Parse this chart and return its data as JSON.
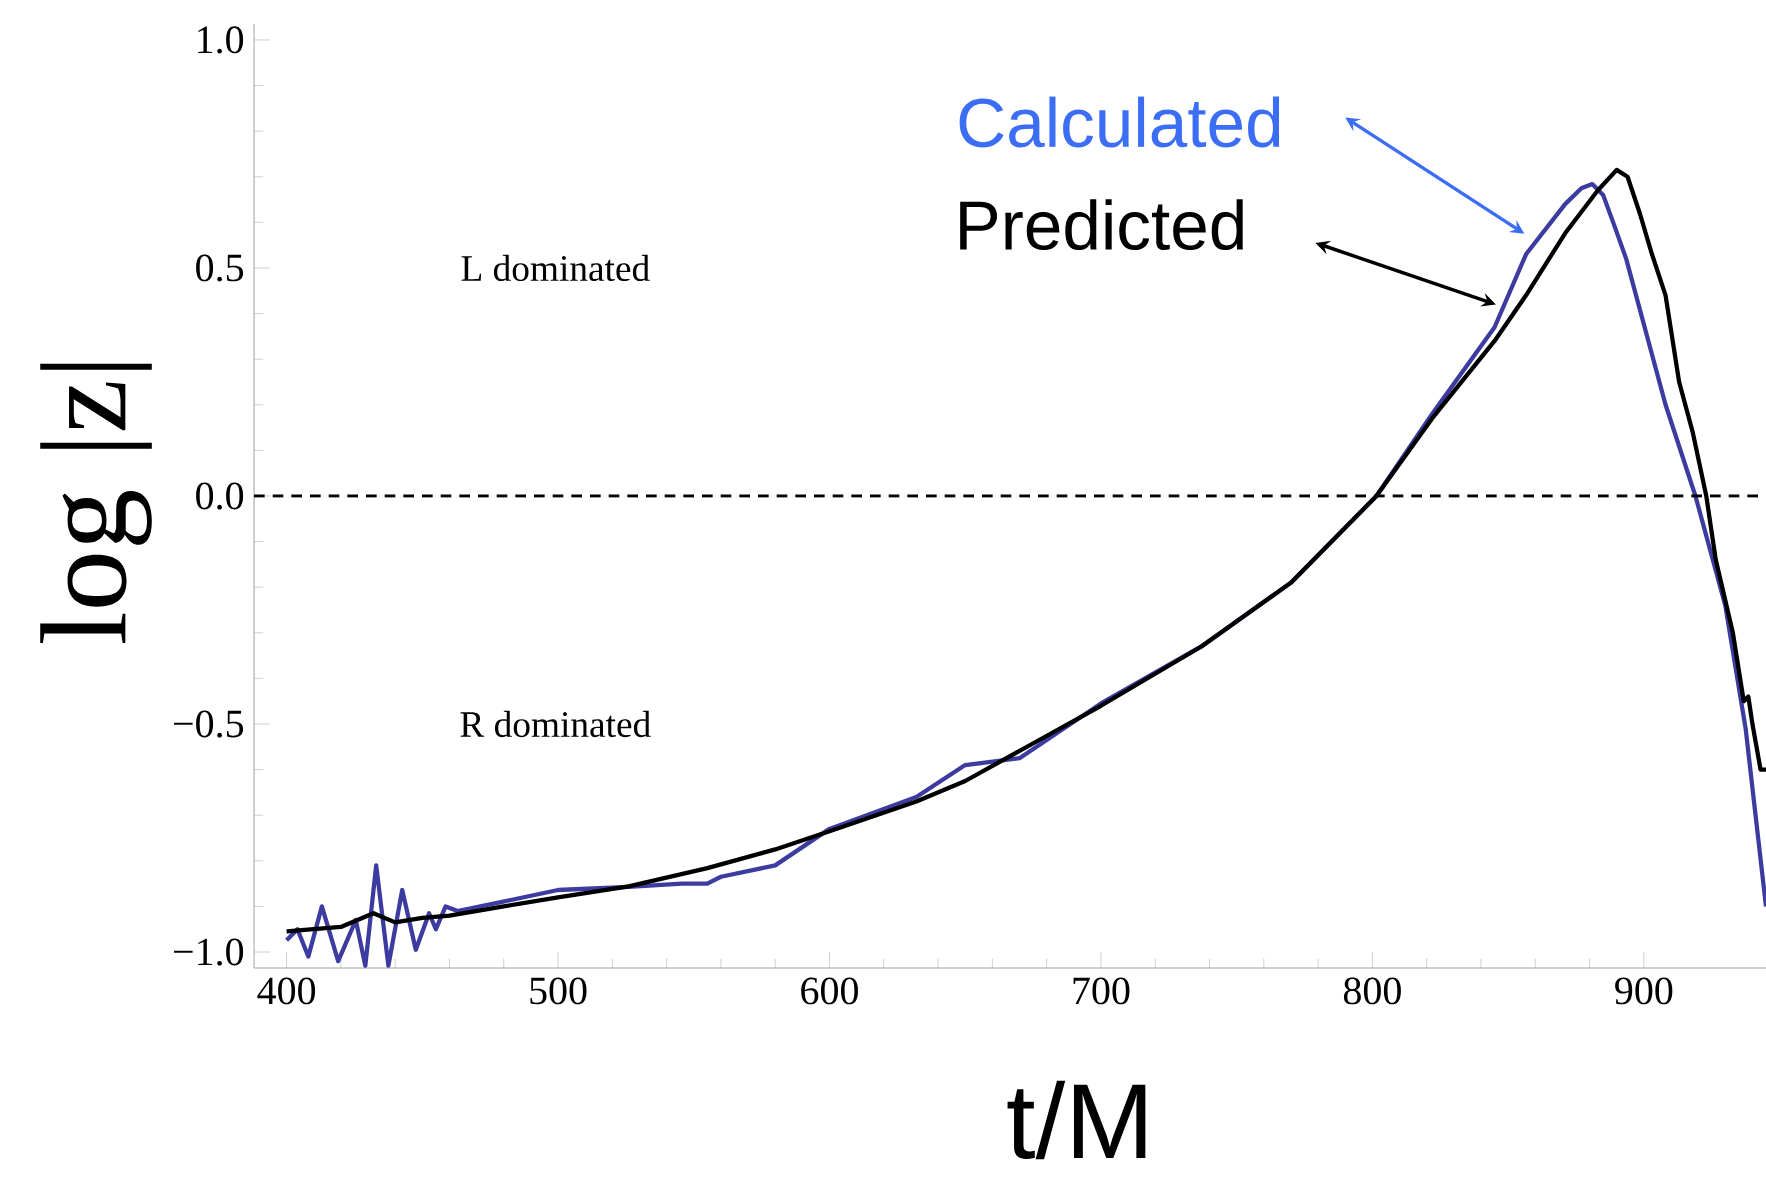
{
  "chart_data": {
    "type": "line",
    "xlabel": "t/M",
    "ylabel": "log |z|",
    "xlim": [
      388,
      945
    ],
    "ylim": [
      -1.035,
      1.035
    ],
    "xticks": [
      400,
      500,
      600,
      700,
      800,
      900
    ],
    "yticks": [
      {
        "value": -1,
        "label": "−1.0"
      },
      {
        "value": -0.5,
        "label": "−0.5"
      },
      {
        "value": 0,
        "label": "0.0"
      },
      {
        "value": 0.5,
        "label": "0.5"
      },
      {
        "value": 1,
        "label": "1.0"
      }
    ],
    "marker": "none",
    "line_style": "solid",
    "series": [
      {
        "name": "Calculated",
        "color": "#3c3ca0",
        "x": [
          400,
          404,
          408,
          413,
          419,
          425.5,
          429,
          433,
          437.5,
          442.6,
          447.6,
          452.5,
          455,
          458.6,
          463,
          479.4,
          500,
          526,
          545.6,
          555,
          560,
          580,
          600,
          632,
          650,
          670,
          700,
          737,
          770,
          801.5,
          822,
          845,
          856.6,
          871,
          877,
          881,
          885,
          888.7,
          893.5,
          908,
          919,
          930,
          937.5,
          945
        ],
        "values": [
          -0.974,
          -0.95,
          -1.01,
          -0.9,
          -1.02,
          -0.93,
          -1.03,
          -0.81,
          -1.03,
          -0.864,
          -0.995,
          -0.915,
          -0.95,
          -0.9,
          -0.91,
          -0.89,
          -0.864,
          -0.857,
          -0.85,
          -0.85,
          -0.835,
          -0.81,
          -0.73,
          -0.66,
          -0.59,
          -0.575,
          -0.455,
          -0.33,
          -0.19,
          0.0,
          0.18,
          0.37,
          0.53,
          0.64,
          0.675,
          0.684,
          0.66,
          0.6,
          0.52,
          0.2,
          0.0,
          -0.24,
          -0.51,
          -0.9
        ]
      },
      {
        "name": "Predicted",
        "color": "#000000",
        "x": [
          400,
          410,
          420,
          432,
          440,
          450,
          460,
          480,
          500,
          526,
          555,
          580,
          600,
          632,
          650,
          700,
          737,
          770,
          801.5,
          822,
          845,
          856.6,
          871,
          883,
          890,
          894,
          898.5,
          903,
          908,
          913,
          918,
          923,
          926.5,
          932.8,
          936.8,
          938.5,
          940,
          943,
          945
        ],
        "values": [
          -0.955,
          -0.95,
          -0.945,
          -0.915,
          -0.935,
          -0.925,
          -0.92,
          -0.9,
          -0.88,
          -0.856,
          -0.816,
          -0.775,
          -0.735,
          -0.67,
          -0.625,
          -0.46,
          -0.33,
          -0.19,
          0.0,
          0.17,
          0.34,
          0.44,
          0.576,
          0.67,
          0.715,
          0.7,
          0.62,
          0.53,
          0.44,
          0.25,
          0.14,
          0.0,
          -0.14,
          -0.3,
          -0.45,
          -0.44,
          -0.5,
          -0.6,
          -0.6
        ]
      }
    ],
    "ref_lines": [
      {
        "axis": "y",
        "value": 0,
        "color": "#000000",
        "line_style": "dashed"
      }
    ],
    "annotations": [
      "L dominated",
      "R dominated"
    ]
  }
}
